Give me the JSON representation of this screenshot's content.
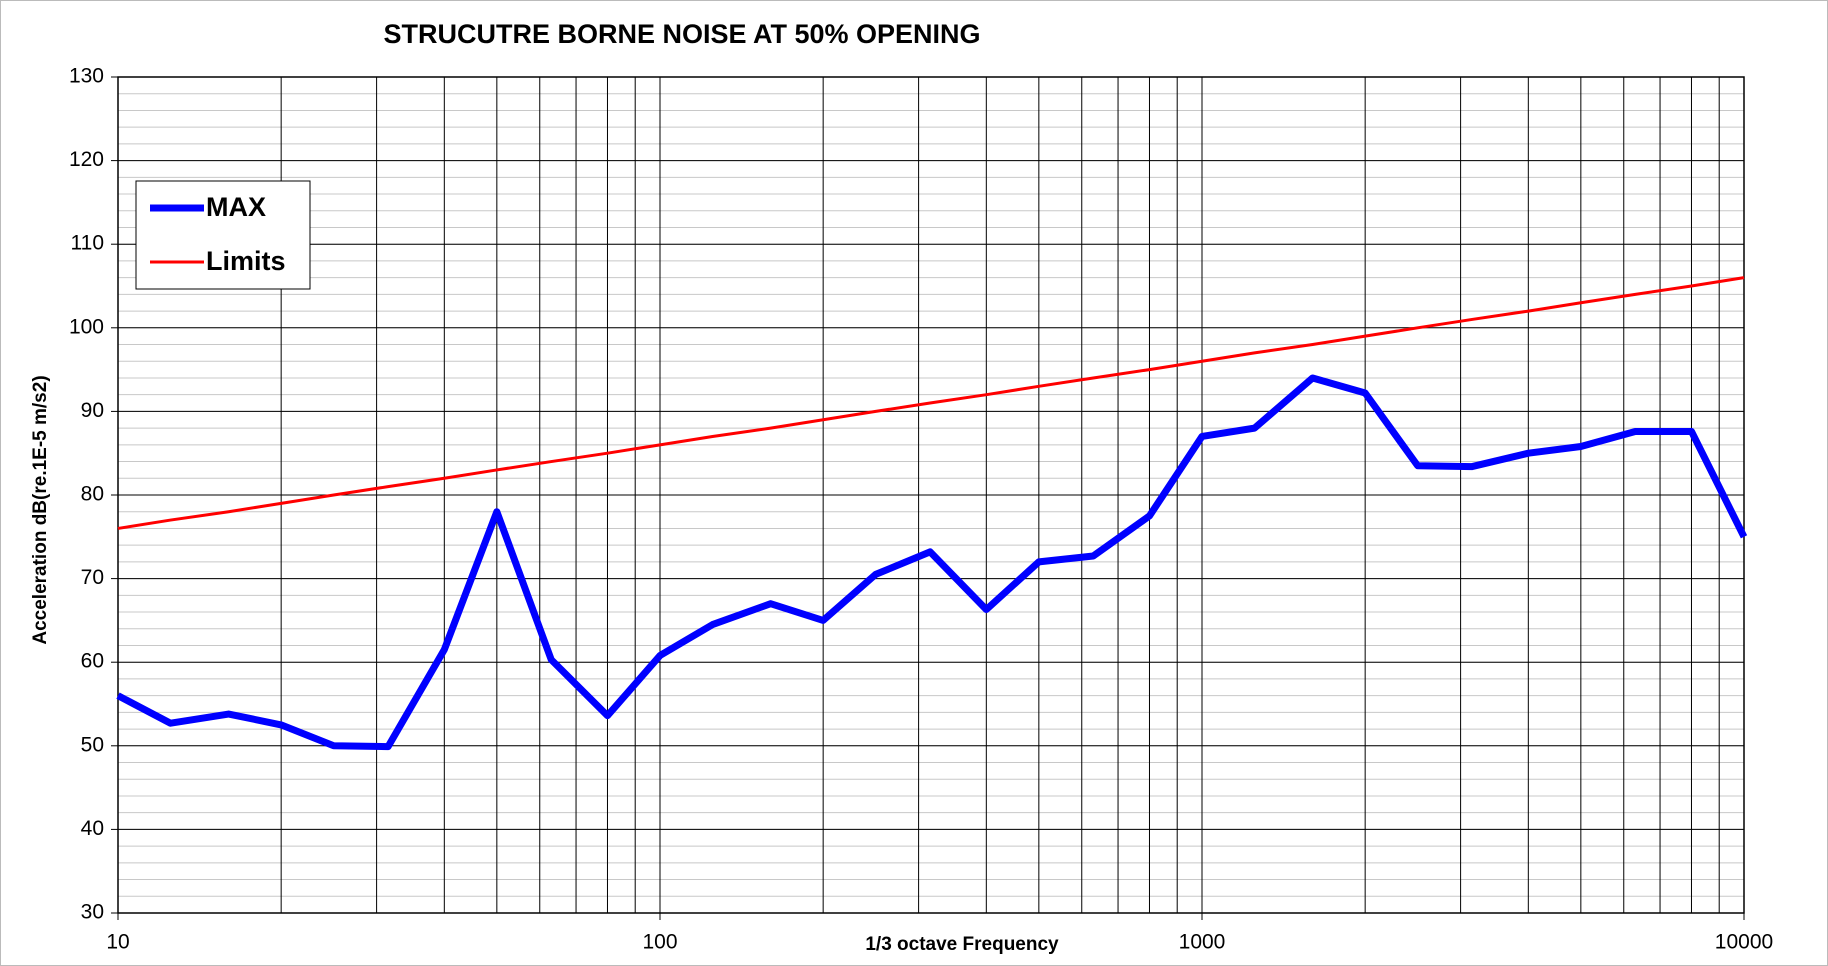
{
  "chart_data": {
    "type": "line",
    "title": "STRUCUTRE BORNE NOISE AT 50% OPENING",
    "x_label": "1/3 octave Frequency",
    "y_label": "Acceleration dB(re.1E-5 m/s2)",
    "x": [
      10,
      12.5,
      16,
      20,
      25,
      31.5,
      40,
      50,
      63,
      80,
      100,
      125,
      160,
      200,
      250,
      315,
      400,
      500,
      630,
      800,
      1000,
      1250,
      1600,
      2000,
      2500,
      3150,
      4000,
      5000,
      6300,
      8000,
      10000
    ],
    "series": [
      {
        "name": "MAX",
        "color": "#0000ff",
        "values": [
          56,
          52.7,
          53.8,
          52.5,
          50,
          49.9,
          61.5,
          78,
          60.3,
          53.6,
          60.8,
          64.5,
          67,
          65,
          70.5,
          73.2,
          66.3,
          72,
          72.7,
          77.5,
          87,
          88,
          94,
          92.2,
          83.5,
          83.4,
          85,
          85.8,
          87.6,
          87.6,
          75
        ]
      },
      {
        "name": "Limits",
        "color": "#ff0000",
        "values": [
          76,
          77,
          78,
          79,
          80,
          81,
          82,
          83,
          84,
          85,
          86,
          87,
          88,
          89,
          90,
          91,
          92,
          93,
          94,
          95,
          96,
          97,
          98,
          99,
          100,
          101,
          102,
          103,
          104,
          105,
          106
        ]
      }
    ],
    "xlim": [
      10,
      10000
    ],
    "xticks": [
      10,
      100,
      1000,
      10000
    ],
    "x_log": true,
    "ylim": [
      30,
      130
    ],
    "yticks": [
      30,
      40,
      50,
      60,
      70,
      80,
      90,
      100,
      110,
      120,
      130
    ],
    "grid": true,
    "minor_grid": true,
    "legend": "upper left"
  }
}
